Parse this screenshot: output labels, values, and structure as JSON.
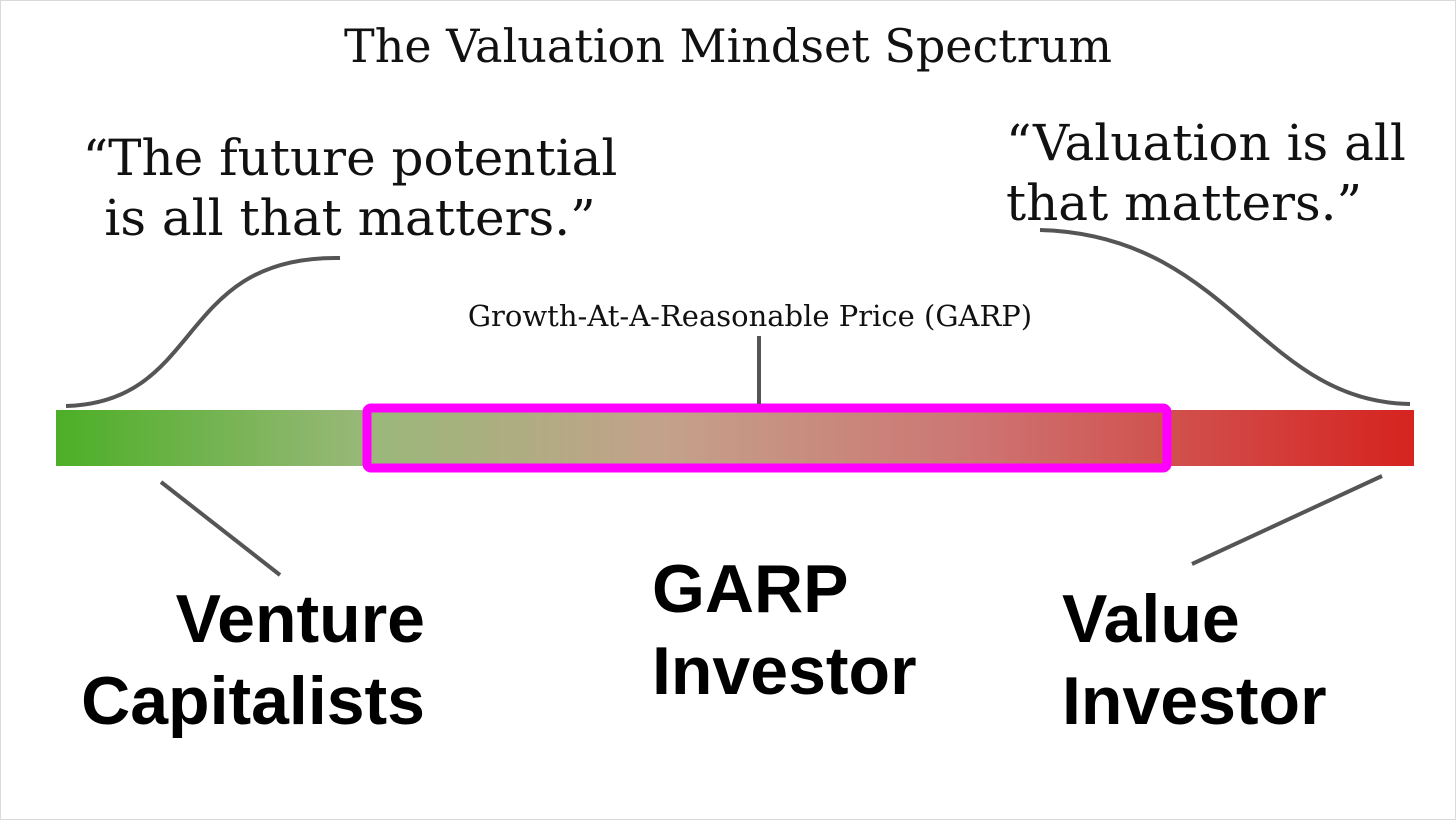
{
  "title": "The Valuation Mindset Spectrum",
  "quotes": {
    "left": "“The future potential is all that matters.”",
    "right": "“Valuation is all that matters.”"
  },
  "spectrum": {
    "middle_caption": "Growth-At-A-Reasonable Price (GARP)",
    "gradient_colors": [
      "#4caf26",
      "#9ab87a",
      "#c4a18a",
      "#cd7472",
      "#d6231f"
    ],
    "highlight_color": "#ff00ff",
    "leader_line_color": "#555555"
  },
  "labels": {
    "left": "Venture Capitalists",
    "middle": "GARP Investor",
    "right": "Value Investor"
  }
}
